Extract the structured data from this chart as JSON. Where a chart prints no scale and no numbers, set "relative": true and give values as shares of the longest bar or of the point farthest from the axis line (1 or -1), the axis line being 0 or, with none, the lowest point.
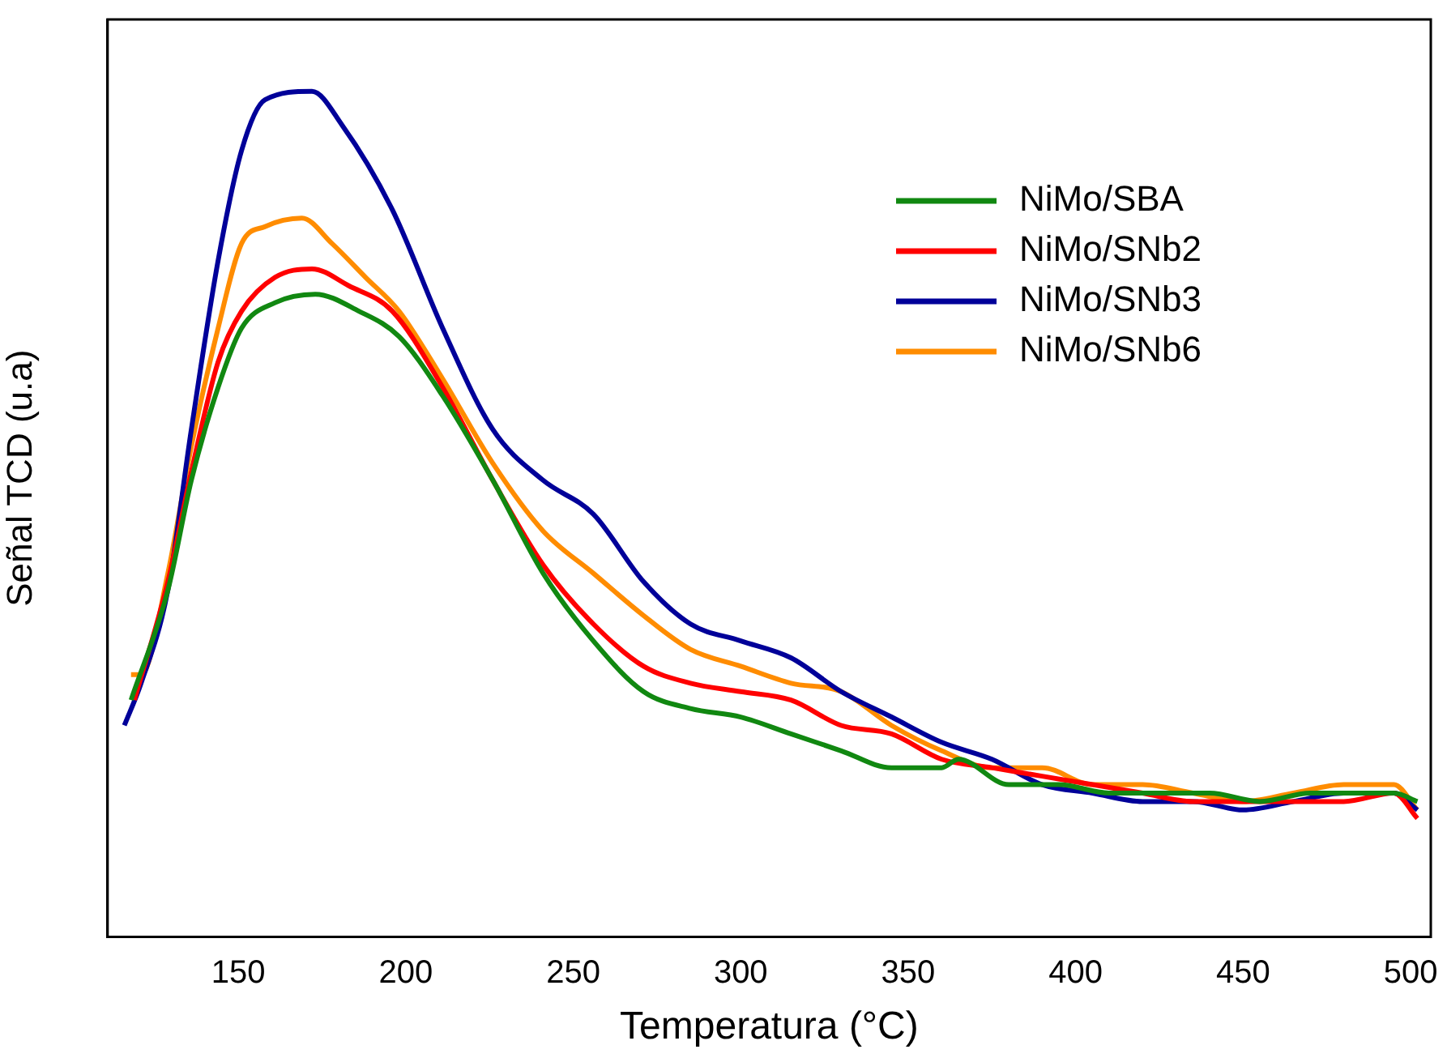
{
  "chart_data": {
    "type": "line",
    "xlabel": "Temperatura (°C)",
    "ylabel": "Señal TCD (u.a)",
    "relative": true,
    "xlim": [
      111,
      506
    ],
    "xticks": [
      150,
      200,
      250,
      300,
      350,
      400,
      450,
      500
    ],
    "legend": "top right",
    "grid": false,
    "marker": "none",
    "line_style": "solid",
    "series": [
      {
        "name": "NiMo/SBA",
        "color": "#118811",
        "x": [
          118,
          129,
          136,
          144,
          151,
          161,
          173,
          186,
          198,
          211,
          226,
          241,
          256,
          271,
          285,
          300,
          315,
          330,
          345,
          360,
          365,
          380,
          395,
          410,
          425,
          440,
          455,
          470,
          485,
          495,
          502
        ],
        "values": [
          0.28,
          0.41,
          0.54,
          0.65,
          0.72,
          0.75,
          0.76,
          0.74,
          0.71,
          0.64,
          0.54,
          0.43,
          0.35,
          0.29,
          0.27,
          0.26,
          0.24,
          0.22,
          0.2,
          0.2,
          0.21,
          0.18,
          0.18,
          0.17,
          0.17,
          0.17,
          0.16,
          0.17,
          0.17,
          0.17,
          0.16
        ]
      },
      {
        "name": "NiMo/SNb2",
        "color": "#ff0000",
        "x": [
          119,
          129,
          136,
          144,
          151,
          161,
          172,
          183,
          196,
          211,
          226,
          241,
          256,
          271,
          285,
          300,
          315,
          330,
          345,
          360,
          375,
          390,
          405,
          420,
          435,
          450,
          465,
          480,
          495,
          502
        ],
        "values": [
          0.28,
          0.42,
          0.55,
          0.68,
          0.74,
          0.78,
          0.79,
          0.77,
          0.74,
          0.65,
          0.54,
          0.44,
          0.37,
          0.32,
          0.3,
          0.29,
          0.28,
          0.25,
          0.24,
          0.21,
          0.2,
          0.19,
          0.18,
          0.17,
          0.16,
          0.16,
          0.16,
          0.16,
          0.17,
          0.14
        ]
      },
      {
        "name": "NiMo/SNb3",
        "color": "#000099",
        "x": [
          116,
          121,
          129,
          136,
          144,
          151,
          158,
          172,
          181,
          196,
          211,
          226,
          241,
          256,
          271,
          285,
          300,
          315,
          330,
          345,
          360,
          375,
          390,
          405,
          420,
          435,
          450,
          465,
          480,
          495,
          502
        ],
        "values": [
          0.25,
          0.3,
          0.41,
          0.6,
          0.8,
          0.93,
          0.99,
          1,
          0.96,
          0.86,
          0.72,
          0.6,
          0.54,
          0.5,
          0.42,
          0.37,
          0.35,
          0.33,
          0.29,
          0.26,
          0.23,
          0.21,
          0.18,
          0.17,
          0.16,
          0.16,
          0.15,
          0.16,
          0.17,
          0.17,
          0.15
        ]
      },
      {
        "name": "NiMo/SNb6",
        "color": "#ff8c00",
        "x": [
          118,
          121,
          129,
          136,
          144,
          151,
          158,
          169,
          178,
          188,
          198,
          211,
          226,
          241,
          256,
          271,
          285,
          300,
          315,
          330,
          345,
          360,
          375,
          390,
          405,
          420,
          435,
          450,
          465,
          480,
          495,
          502
        ],
        "values": [
          0.31,
          0.31,
          0.43,
          0.58,
          0.72,
          0.82,
          0.84,
          0.85,
          0.82,
          0.78,
          0.74,
          0.66,
          0.56,
          0.48,
          0.43,
          0.38,
          0.34,
          0.32,
          0.3,
          0.29,
          0.25,
          0.22,
          0.2,
          0.2,
          0.18,
          0.18,
          0.17,
          0.16,
          0.17,
          0.18,
          0.18,
          0.15
        ]
      }
    ]
  }
}
